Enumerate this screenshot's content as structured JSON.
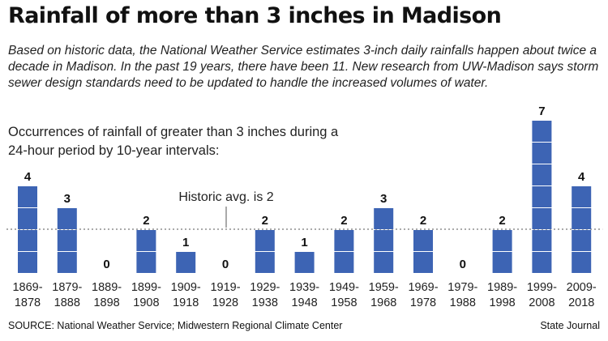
{
  "title": "Rainfall of more than 3 inches in Madison",
  "intro": "Based on historic data, the National Weather Service estimates 3-inch daily rainfalls happen about twice a decade in Madison. In the past 19 years, there have been 11. New research from UW-Madison says storm sewer design standards need to be updated to handle the increased volumes of water.",
  "footer": {
    "source": "SOURCE: National Weather Service; Midwestern Regional Climate Center",
    "credit": "State Journal"
  },
  "colors": {
    "bar": "#3d64b4",
    "segment_divider": "#ffffff",
    "avg_line": "#555555",
    "text": "#1a1a1a"
  },
  "chart_data": {
    "type": "bar",
    "title": "Occurrences of rainfall of greater than 3 inches during a 24-hour period by 10-year intervals:",
    "categories": [
      [
        "1869-",
        "1878"
      ],
      [
        "1879-",
        "1888"
      ],
      [
        "1889-",
        "1898"
      ],
      [
        "1899-",
        "1908"
      ],
      [
        "1909-",
        "1918"
      ],
      [
        "1919-",
        "1928"
      ],
      [
        "1929-",
        "1938"
      ],
      [
        "1939-",
        "1948"
      ],
      [
        "1949-",
        "1958"
      ],
      [
        "1959-",
        "1968"
      ],
      [
        "1969-",
        "1978"
      ],
      [
        "1979-",
        "1988"
      ],
      [
        "1989-",
        "1998"
      ],
      [
        "1999-",
        "2008"
      ],
      [
        "2009-",
        "2018"
      ]
    ],
    "values": [
      4,
      3,
      0,
      2,
      1,
      0,
      2,
      1,
      2,
      3,
      2,
      0,
      2,
      7,
      4
    ],
    "reference_line": {
      "value": 2,
      "label": "Historic avg. is 2"
    },
    "ylim": [
      0,
      7
    ],
    "grid": false
  }
}
